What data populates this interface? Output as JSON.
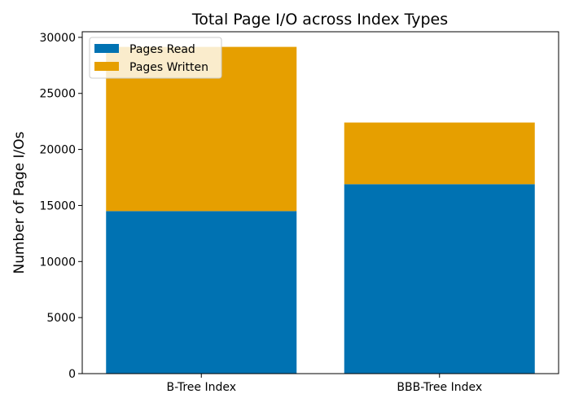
{
  "chart_data": {
    "type": "bar",
    "stacked": true,
    "title": "Total Page I/O across Index Types",
    "xlabel": "",
    "ylabel": "Number of Page I/Os",
    "categories": [
      "B-Tree Index",
      "BBB-Tree Index"
    ],
    "series": [
      {
        "name": "Pages Read",
        "values": [
          14500,
          16900
        ],
        "color": "#0072B2"
      },
      {
        "name": "Pages Written",
        "values": [
          14650,
          5500
        ],
        "color": "#E69F00"
      }
    ],
    "ylim": [
      0,
      30500
    ],
    "yticks": [
      0,
      5000,
      10000,
      15000,
      20000,
      25000,
      30000
    ],
    "grid": false,
    "legend_position": "top-left"
  }
}
